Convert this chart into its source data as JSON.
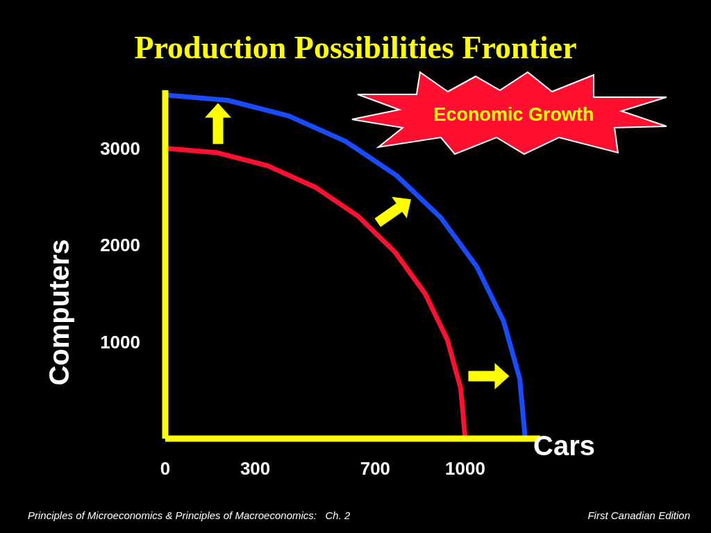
{
  "chart_data": {
    "type": "line",
    "title": "Production Possibilities Frontier",
    "xlabel": "Cars",
    "ylabel": "Computers",
    "xlim": [
      0,
      1250
    ],
    "xticks": [
      0,
      300,
      700,
      1000
    ],
    "ylim": [
      0,
      3600
    ],
    "yticks": [
      1000,
      2000,
      3000
    ],
    "marker": "none",
    "line_style": "solid",
    "series": [
      {
        "color": "#ff1030",
        "x": [
          0,
          174,
          342,
          500,
          643,
          766,
          866,
          940,
          985,
          1000
        ],
        "values": [
          3000,
          2954,
          2819,
          2598,
          2298,
          1928,
          1500,
          1026,
          521,
          0
        ]
      },
      {
        "color": "#1a4cff",
        "x": [
          0,
          208,
          410,
          600,
          771,
          919,
          1039,
          1128,
          1182,
          1200
        ],
        "values": [
          3550,
          3496,
          3336,
          3074,
          2719,
          2282,
          1775,
          1214,
          616,
          0
        ]
      }
    ],
    "annotations": [
      "Economic Growth",
      "Principles of Microeconomics & Principles of Macroeconomics:   Ch. 2",
      "First Canadian Edition"
    ]
  }
}
